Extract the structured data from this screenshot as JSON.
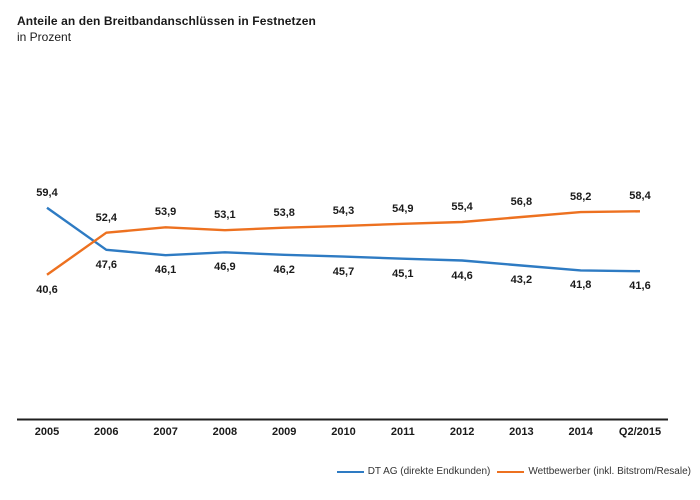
{
  "chart_data": {
    "type": "line",
    "title": "Anteile an den Breitbandanschlüssen in Festnetzen",
    "subtitle": "in Prozent",
    "categories": [
      "2005",
      "2006",
      "2007",
      "2008",
      "2009",
      "2010",
      "2011",
      "2012",
      "2013",
      "2014",
      "Q2/2015"
    ],
    "series": [
      {
        "name": "DT AG (direkte Endkunden)",
        "color": "#2E7BC3",
        "values": [
          59.4,
          47.6,
          46.1,
          46.9,
          46.2,
          45.7,
          45.1,
          44.6,
          43.2,
          41.8,
          41.6
        ]
      },
      {
        "name": "Wettbewerber (inkl. Bitstrom/Resale)",
        "color": "#ED7120",
        "values": [
          40.6,
          52.4,
          53.9,
          53.1,
          53.8,
          54.3,
          54.9,
          55.4,
          56.8,
          58.2,
          58.4
        ]
      }
    ],
    "value_decimal_separator": ",",
    "data_labels": true,
    "grid": false,
    "y_axis_visible": false,
    "x_axis_line_color": "#1f1f1f",
    "legend_position": "bottom-right",
    "ylim": [
      0,
      75
    ]
  }
}
